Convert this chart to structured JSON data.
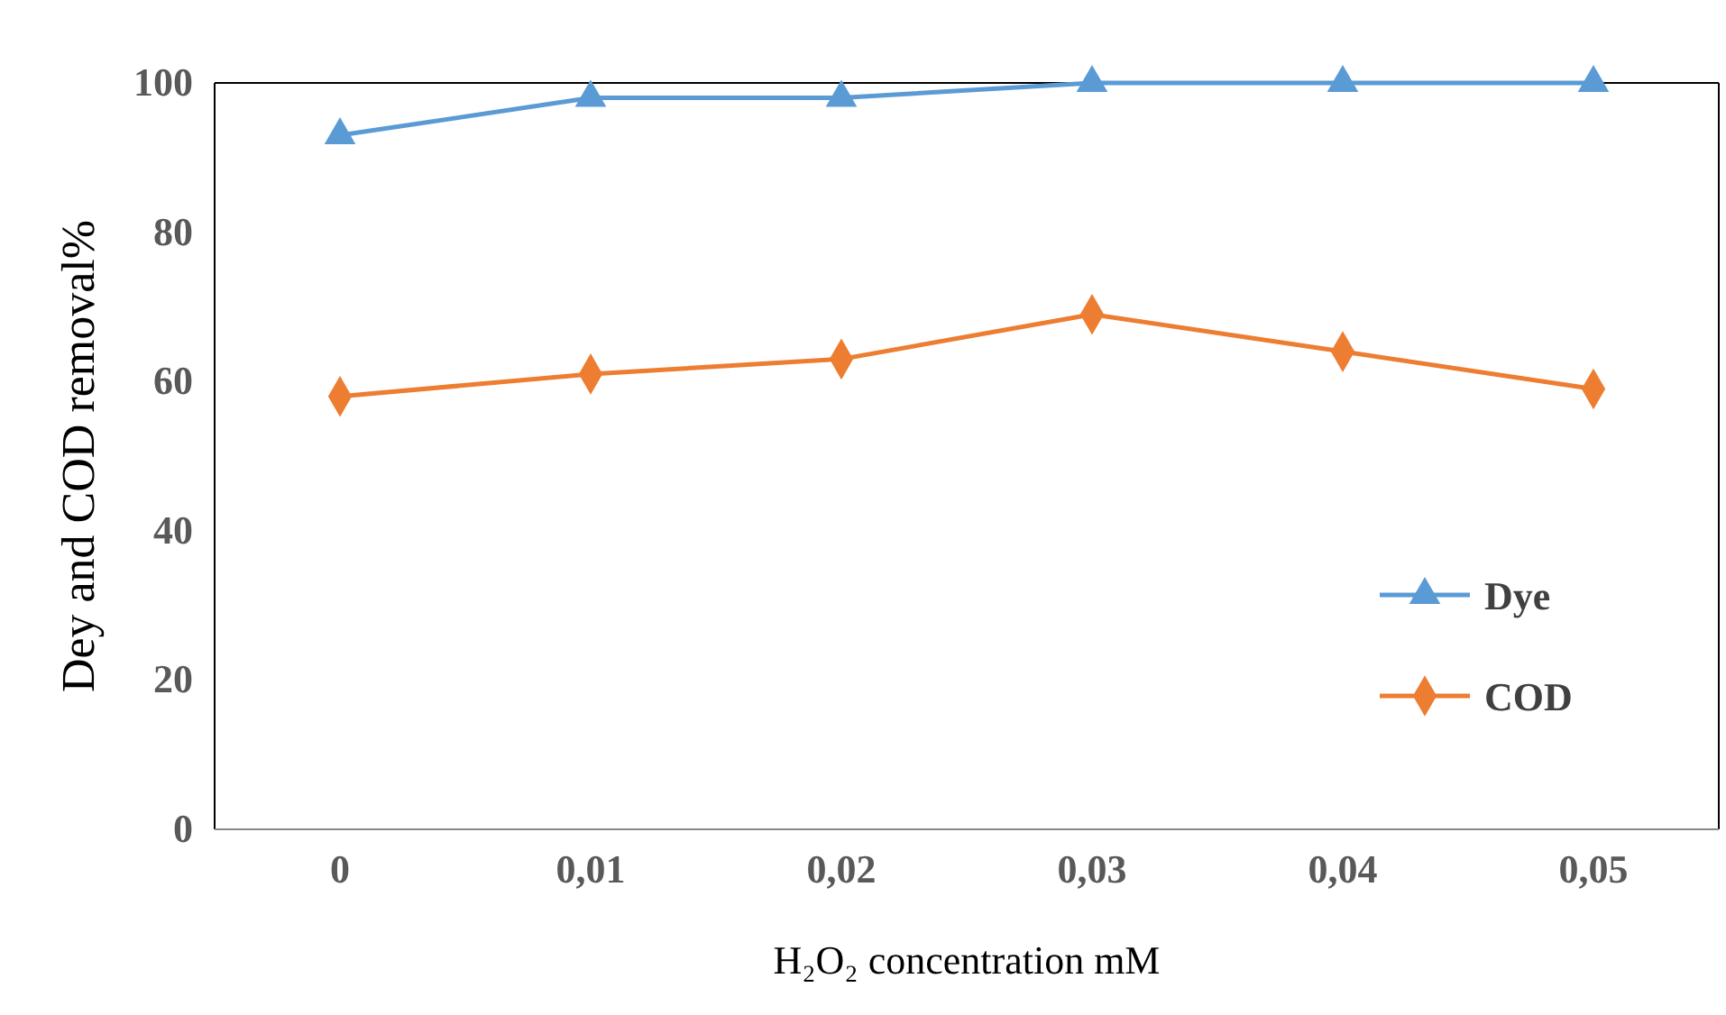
{
  "chart_data": {
    "type": "line",
    "xlabel": "H₂O₂ concentration mM",
    "ylabel": "Dey and COD removal%",
    "categories": [
      "0",
      "0,01",
      "0,02",
      "0,03",
      "0,04",
      "0,05"
    ],
    "series": [
      {
        "name": "Dye",
        "color": "#5b9bd5",
        "marker": "triangle",
        "values": [
          93,
          98,
          98,
          100,
          100,
          100
        ]
      },
      {
        "name": "COD",
        "color": "#ed7d31",
        "marker": "diamond",
        "values": [
          58,
          61,
          63,
          69,
          64,
          59
        ]
      }
    ],
    "ylim": [
      0,
      100
    ],
    "yticks": [
      0,
      20,
      40,
      60,
      80,
      100
    ],
    "grid": false,
    "legend": "right",
    "line_style": "solid"
  }
}
